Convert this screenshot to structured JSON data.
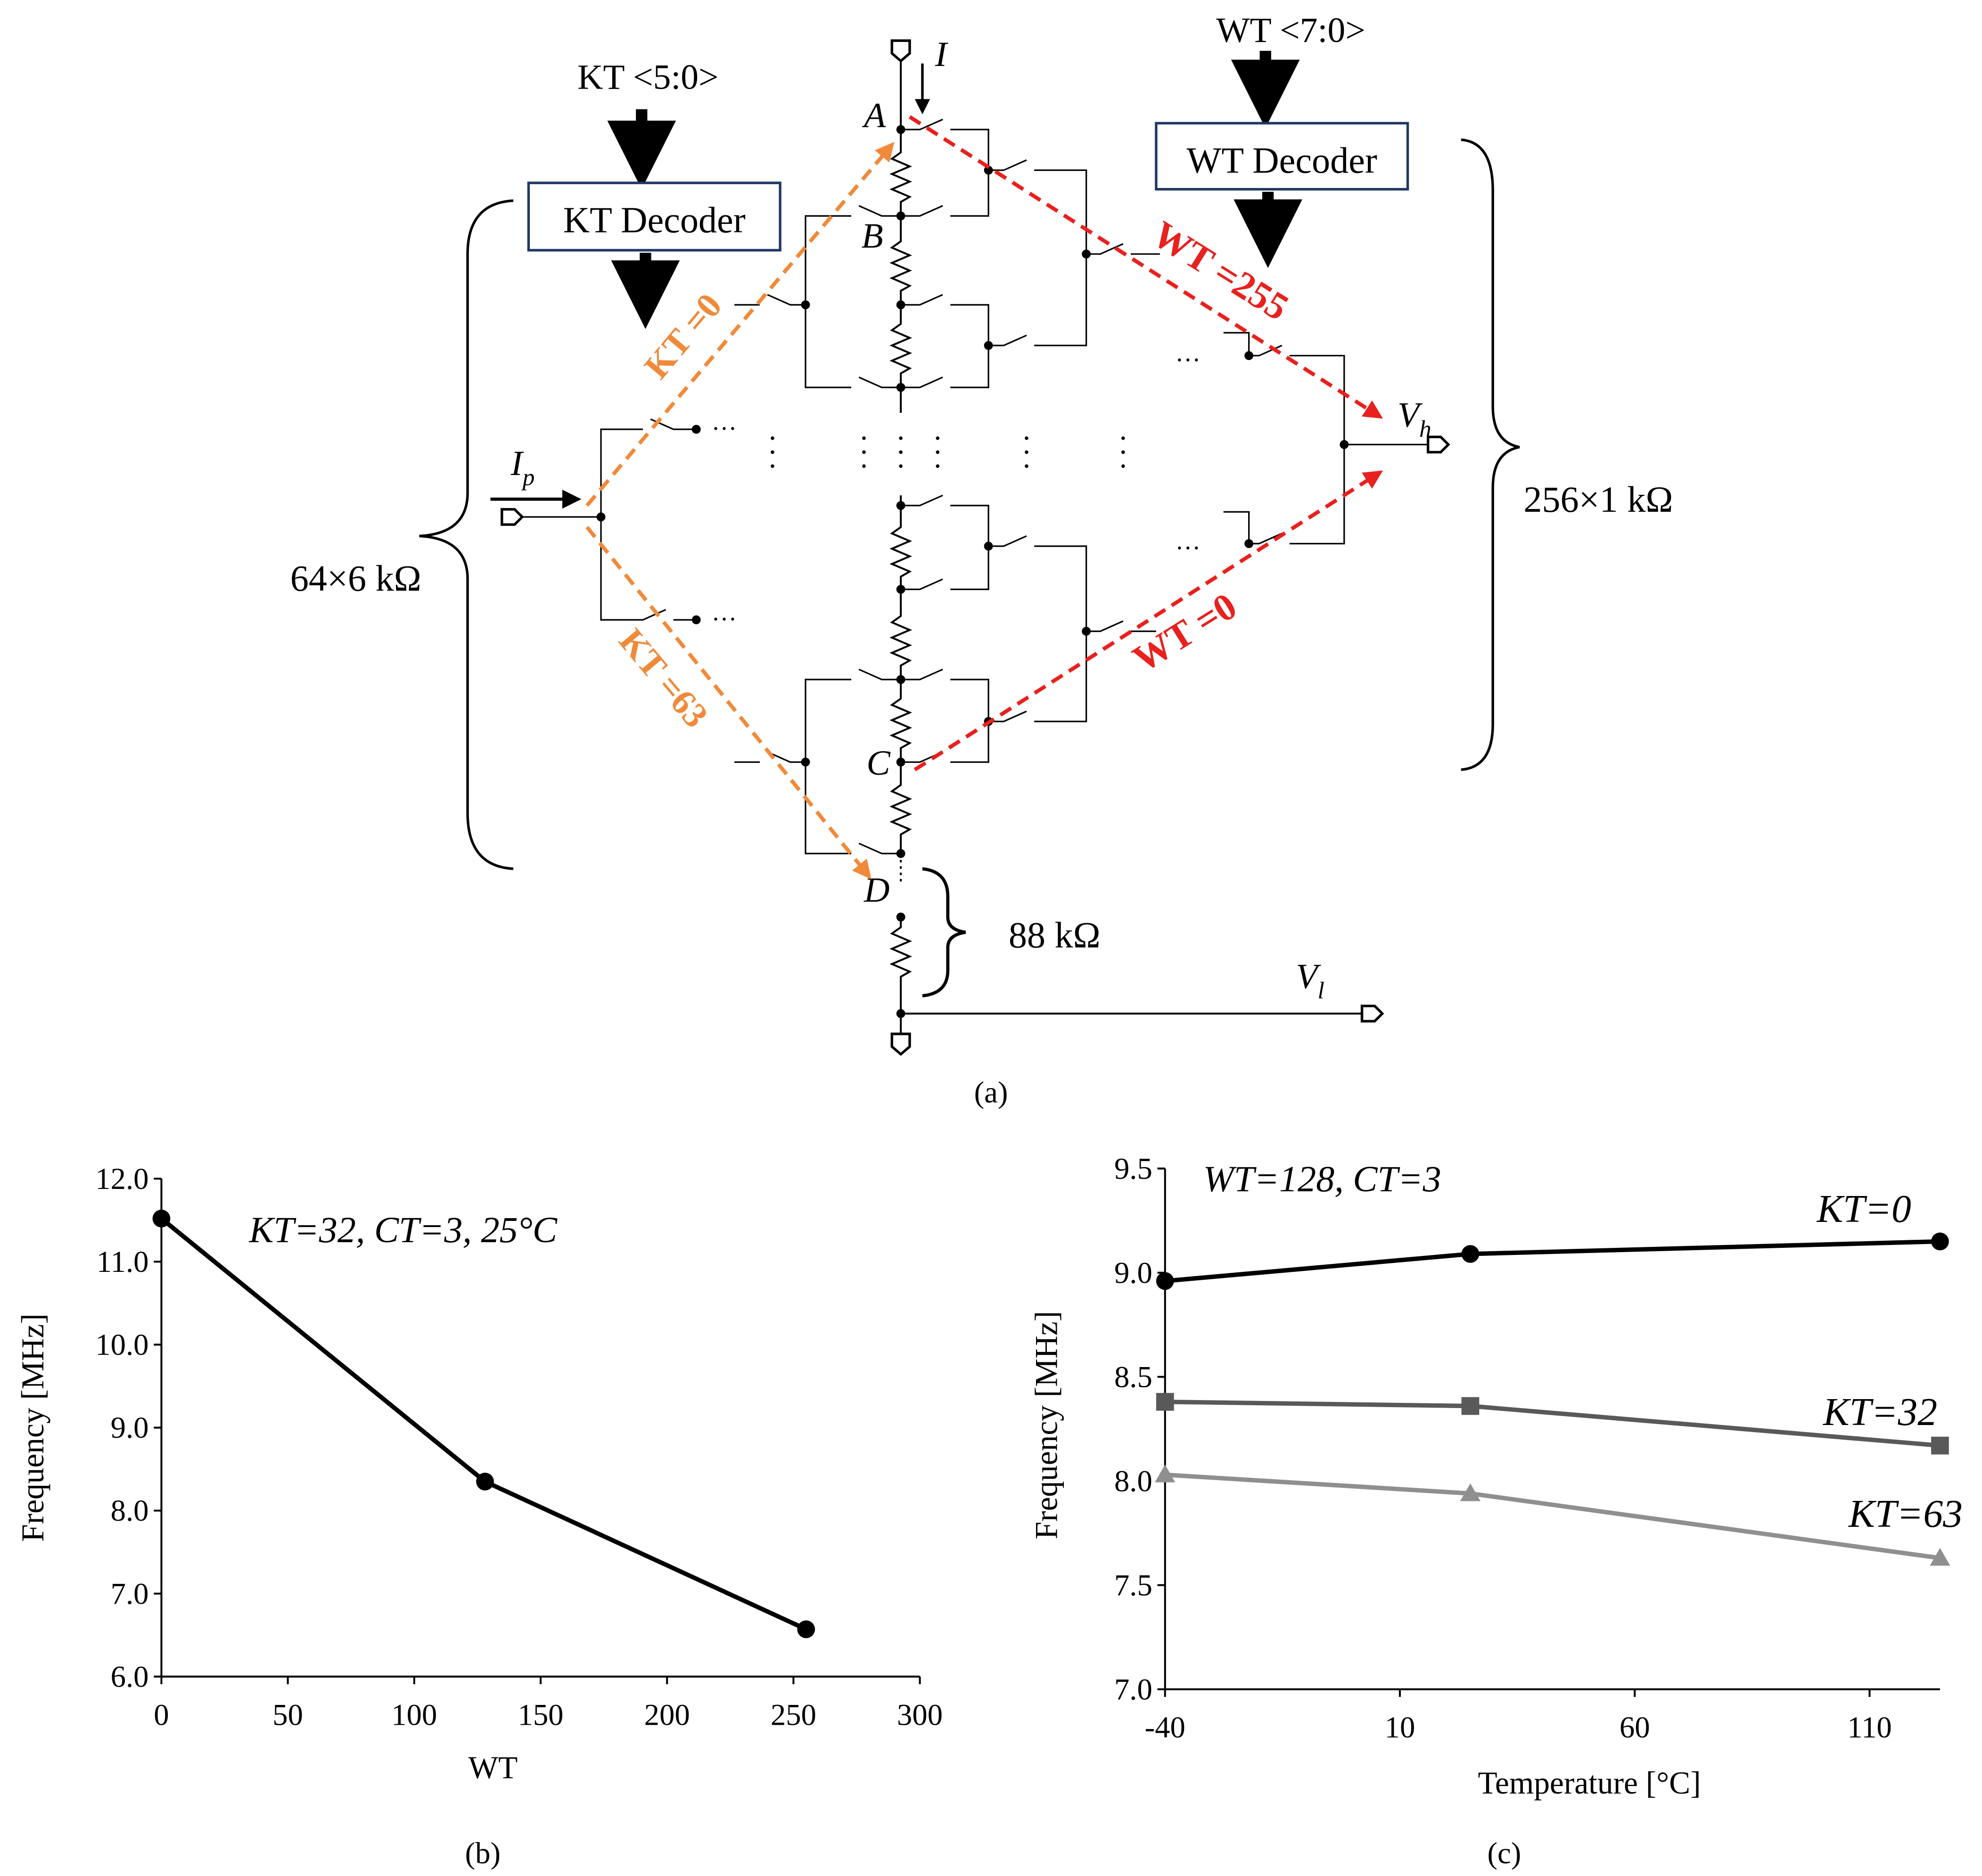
{
  "panel_a": {
    "caption": "(a)",
    "kt_bus": "KT <5:0>",
    "wt_bus": "WT <7:0>",
    "kt_decoder": "KT Decoder",
    "wt_decoder": "WT Decoder",
    "node_a": "A",
    "node_b": "B",
    "node_c": "C",
    "node_d": "D",
    "current_i": "I",
    "current_ip": "I",
    "current_ip_sub": "p",
    "vh": "V",
    "vh_sub": "h",
    "vl": "V",
    "vl_sub": "l",
    "res_left": "64×6 kΩ",
    "res_right": "256×1 kΩ",
    "res_bottom": "88 kΩ",
    "path_kt0": "KT =0",
    "path_kt63": "KT =63",
    "path_wt255": "WT =255",
    "path_wt0": "WT =0",
    "ellipsis": "···",
    "colors": {
      "kt_path": "#f08a3a",
      "wt_path": "#e8211e",
      "decoder_border": "#1f3864"
    }
  },
  "chart_data": [
    {
      "type": "line",
      "caption": "(b)",
      "annotation": "KT=32,  CT=3, 25°C",
      "xlabel": "WT",
      "ylabel": "Frequency [MHz]",
      "xlim": [
        0,
        300
      ],
      "ylim": [
        6.0,
        12.0
      ],
      "xticks": [
        "0",
        "50",
        "100",
        "150",
        "200",
        "250",
        "300"
      ],
      "yticks": [
        "6.0",
        "7.0",
        "8.0",
        "9.0",
        "10.0",
        "11.0",
        "12.0"
      ],
      "series": [
        {
          "name": "KT=32",
          "x": [
            0,
            128,
            255
          ],
          "values": [
            11.52,
            8.35,
            6.57
          ],
          "color": "#000000",
          "marker": "circle"
        }
      ]
    },
    {
      "type": "line",
      "caption": "(c)",
      "annotation": "WT=128,  CT=3",
      "xlabel": "Temperature [°C]",
      "ylabel": "Frequency [MHz]",
      "xlim": [
        -40,
        125
      ],
      "ylim": [
        7.0,
        9.5
      ],
      "xticks": [
        "-40",
        "10",
        "60",
        "110"
      ],
      "yticks": [
        "7.0",
        "7.5",
        "8.0",
        "8.5",
        "9.0",
        "9.5"
      ],
      "series": [
        {
          "name": "KT=0",
          "label": "KT=0",
          "x": [
            -40,
            25,
            125
          ],
          "values": [
            8.96,
            9.09,
            9.15
          ],
          "color": "#000000",
          "marker": "circle"
        },
        {
          "name": "KT=32",
          "label": "KT=32",
          "x": [
            -40,
            25,
            125
          ],
          "values": [
            8.38,
            8.36,
            8.17
          ],
          "color": "#595959",
          "marker": "square"
        },
        {
          "name": "KT=63",
          "label": "KT=63",
          "x": [
            -40,
            25,
            125
          ],
          "values": [
            8.03,
            7.94,
            7.63
          ],
          "color": "#8f8f8f",
          "marker": "triangle"
        }
      ]
    }
  ]
}
